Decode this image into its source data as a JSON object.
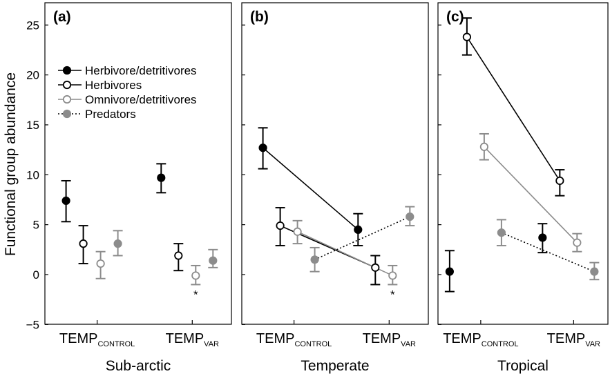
{
  "y_axis_label": "Functional group abundance",
  "legend": [
    {
      "label": "Herbivore/detritivores",
      "style": "solid-black-filled"
    },
    {
      "label": "Herbivores",
      "style": "solid-black-open"
    },
    {
      "label": "Omnivore/detritivores",
      "style": "solid-grey-open"
    },
    {
      "label": "Predators",
      "style": "dotted-grey-filled"
    }
  ],
  "colors": {
    "black": "#000000",
    "grey": "#8c8c8c"
  },
  "chart_data": [
    {
      "type": "scatter",
      "panel_label": "(a)",
      "title": "Sub-arctic",
      "categories": [
        {
          "main": "TEMP",
          "sub": "CONTROL"
        },
        {
          "main": "TEMP",
          "sub": "VAR"
        }
      ],
      "ylim": [
        -5,
        27
      ],
      "yticks": [
        -5,
        0,
        5,
        10,
        15,
        20,
        25
      ],
      "lines_connected": false,
      "annotations": [
        {
          "text": "*",
          "category": 1,
          "series": "Omnivore/detritivores"
        }
      ],
      "series": [
        {
          "name": "Herbivore/detritivores",
          "values": [
            7.4,
            9.7
          ],
          "err_low": [
            5.3,
            8.2
          ],
          "err_high": [
            9.4,
            11.1
          ]
        },
        {
          "name": "Herbivores",
          "values": [
            3.1,
            1.9
          ],
          "err_low": [
            1.1,
            0.4
          ],
          "err_high": [
            4.9,
            3.1
          ]
        },
        {
          "name": "Omnivore/detritivores",
          "values": [
            1.1,
            -0.1
          ],
          "err_low": [
            -0.4,
            -1.0
          ],
          "err_high": [
            2.3,
            0.9
          ]
        },
        {
          "name": "Predators",
          "values": [
            3.1,
            1.4
          ],
          "err_low": [
            1.9,
            0.7
          ],
          "err_high": [
            4.4,
            2.5
          ]
        }
      ]
    },
    {
      "type": "scatter",
      "panel_label": "(b)",
      "title": "Temperate",
      "categories": [
        {
          "main": "TEMP",
          "sub": "CONTROL"
        },
        {
          "main": "TEMP",
          "sub": "VAR"
        }
      ],
      "ylim": [
        -5,
        27
      ],
      "yticks": [
        -5,
        0,
        5,
        10,
        15,
        20,
        25
      ],
      "lines_connected": true,
      "annotations": [
        {
          "text": "*",
          "category": 1,
          "series": "Omnivore/detritivores"
        }
      ],
      "series": [
        {
          "name": "Herbivore/detritivores",
          "values": [
            12.7,
            4.5
          ],
          "err_low": [
            10.6,
            2.9
          ],
          "err_high": [
            14.7,
            6.1
          ]
        },
        {
          "name": "Herbivores",
          "values": [
            4.9,
            0.7
          ],
          "err_low": [
            2.9,
            -1.0
          ],
          "err_high": [
            6.7,
            1.9
          ]
        },
        {
          "name": "Omnivore/detritivores",
          "values": [
            4.3,
            -0.1
          ],
          "err_low": [
            3.1,
            -1.0
          ],
          "err_high": [
            5.4,
            0.9
          ]
        },
        {
          "name": "Predators",
          "values": [
            1.5,
            5.8
          ],
          "err_low": [
            0.3,
            4.9
          ],
          "err_high": [
            2.7,
            6.8
          ]
        }
      ]
    },
    {
      "type": "scatter",
      "panel_label": "(c)",
      "title": "Tropical",
      "categories": [
        {
          "main": "TEMP",
          "sub": "CONTROL"
        },
        {
          "main": "TEMP",
          "sub": "VAR"
        }
      ],
      "ylim": [
        -5,
        27
      ],
      "yticks": [
        -5,
        0,
        5,
        10,
        15,
        20,
        25
      ],
      "lines_connected": true,
      "connected_series": [
        "Herbivores",
        "Omnivore/detritivores",
        "Predators"
      ],
      "annotations": [],
      "series": [
        {
          "name": "Herbivore/detritivores",
          "values": [
            0.3,
            3.7
          ],
          "err_low": [
            -1.7,
            2.2
          ],
          "err_high": [
            2.4,
            5.1
          ]
        },
        {
          "name": "Herbivores",
          "values": [
            23.8,
            9.4
          ],
          "err_low": [
            22.0,
            7.9
          ],
          "err_high": [
            25.7,
            10.5
          ]
        },
        {
          "name": "Omnivore/detritivores",
          "values": [
            12.8,
            3.2
          ],
          "err_low": [
            11.5,
            2.3
          ],
          "err_high": [
            14.1,
            4.1
          ]
        },
        {
          "name": "Predators",
          "values": [
            4.2,
            0.3
          ],
          "err_low": [
            2.9,
            -0.5
          ],
          "err_high": [
            5.5,
            1.2
          ]
        }
      ]
    }
  ]
}
